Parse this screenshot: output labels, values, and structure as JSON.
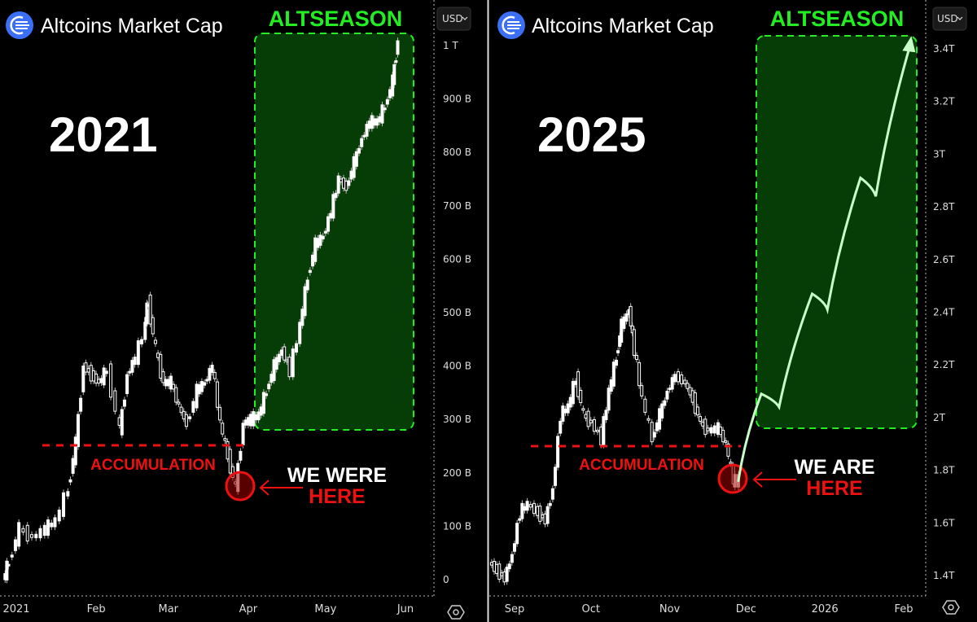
{
  "colors": {
    "background": "#000000",
    "candle": "#ffffff",
    "altseason": "#22ee22",
    "altseason_fill": "#063d06",
    "accumulation": "#ee1111",
    "projection": "#c8ffc8",
    "logo": "#3b6ff5"
  },
  "chart_data": [
    {
      "type": "candlestick",
      "title": "Altcoins Market Cap",
      "year_label": "2021",
      "currency": "USD",
      "currency_icon": "chevron-down-icon",
      "settings_icon": "gear-hexagon-icon",
      "y_ticks": [
        "0",
        "100 B",
        "200 B",
        "300 B",
        "400 B",
        "500 B",
        "600 B",
        "700 B",
        "800 B",
        "900 B",
        "1 T"
      ],
      "y_tick_values": [
        0,
        100,
        200,
        300,
        400,
        500,
        600,
        700,
        800,
        900,
        1000
      ],
      "y_unit": "B USD",
      "x_ticks": [
        "2021",
        "Feb",
        "Mar",
        "Apr",
        "May",
        "Jun"
      ],
      "x_tick_dates": [
        "2021-01-01",
        "2021-02-01",
        "2021-03-01",
        "2021-04-01",
        "2021-05-01",
        "2021-06-01"
      ],
      "series": {
        "dates": [
          "2020-12-27",
          "2020-12-29",
          "2021-01-02",
          "2021-01-07",
          "2021-01-12",
          "2021-01-16",
          "2021-01-21",
          "2021-01-24",
          "2021-01-27",
          "2021-01-30",
          "2021-02-02",
          "2021-02-05",
          "2021-02-10",
          "2021-02-13",
          "2021-02-16",
          "2021-02-20",
          "2021-02-21",
          "2021-02-24",
          "2021-02-27",
          "2021-03-02",
          "2021-03-05",
          "2021-03-08",
          "2021-03-12",
          "2021-03-15",
          "2021-03-18",
          "2021-03-21",
          "2021-03-24",
          "2021-03-27",
          "2021-03-30",
          "2021-04-02",
          "2021-04-05",
          "2021-04-08",
          "2021-04-11",
          "2021-04-14",
          "2021-04-17",
          "2021-04-21",
          "2021-04-24",
          "2021-04-27",
          "2021-04-30",
          "2021-05-03",
          "2021-05-06",
          "2021-05-09",
          "2021-05-12",
          "2021-05-15",
          "2021-05-18",
          "2021-05-21",
          "2021-05-24",
          "2021-05-27",
          "2021-05-29"
        ],
        "close": [
          0,
          34,
          95,
          79,
          95,
          110,
          171,
          255,
          400,
          384,
          369,
          392,
          277,
          384,
          415,
          476,
          521,
          430,
          369,
          369,
          323,
          293,
          354,
          369,
          400,
          293,
          232,
          171,
          293,
          300,
          308,
          354,
          400,
          430,
          392,
          476,
          567,
          628,
          643,
          689,
          750,
          735,
          780,
          826,
          857,
          857,
          887,
          933,
          1009
        ]
      },
      "annotations": {
        "zone_label": "ALTSEASON",
        "zone_range": [
          280,
          1030
        ],
        "zone_dates": [
          "2021-04-02",
          "2021-06-01"
        ],
        "support_label": "ACCUMULATION",
        "support_level": 251,
        "marker_line1": "WE WERE",
        "marker_line2": "HERE",
        "marker_icon": "arrow-left-icon"
      }
    },
    {
      "type": "candlestick",
      "title": "Altcoins Market Cap",
      "year_label": "2025",
      "currency": "USD",
      "currency_icon": "chevron-down-icon",
      "settings_icon": "gear-hexagon-icon",
      "y_ticks": [
        "1.4T",
        "1.6T",
        "1.8T",
        "2T",
        "2.2T",
        "2.4T",
        "2.6T",
        "2.8T",
        "3T",
        "3.2T",
        "3.4T"
      ],
      "y_tick_values": [
        1.4,
        1.6,
        1.8,
        2.0,
        2.2,
        2.4,
        2.6,
        2.8,
        3.0,
        3.2,
        3.4
      ],
      "y_unit": "T USD",
      "x_ticks": [
        "Sep",
        "Oct",
        "Nov",
        "Dec",
        "2026",
        "Feb"
      ],
      "x_tick_dates": [
        "2025-09-01",
        "2025-10-01",
        "2025-11-01",
        "2025-12-01",
        "2026-01-01",
        "2026-02-01"
      ],
      "series": {
        "dates": [
          "2025-08-22",
          "2025-08-25",
          "2025-08-28",
          "2025-08-31",
          "2025-09-03",
          "2025-09-06",
          "2025-09-10",
          "2025-09-13",
          "2025-09-16",
          "2025-09-19",
          "2025-09-22",
          "2025-09-25",
          "2025-09-28",
          "2025-10-01",
          "2025-10-05",
          "2025-10-08",
          "2025-10-11",
          "2025-10-13",
          "2025-10-16",
          "2025-10-18",
          "2025-10-21",
          "2025-10-25",
          "2025-10-28",
          "2025-10-31",
          "2025-11-03",
          "2025-11-07",
          "2025-11-10",
          "2025-11-13",
          "2025-11-16",
          "2025-11-20",
          "2025-11-23",
          "2025-11-26",
          "2025-11-28"
        ],
        "close": [
          1.45,
          1.42,
          1.39,
          1.48,
          1.64,
          1.67,
          1.64,
          1.61,
          1.73,
          2.01,
          2.04,
          2.15,
          2.01,
          1.98,
          1.92,
          2.1,
          2.23,
          2.35,
          2.41,
          2.26,
          2.07,
          1.92,
          2.01,
          2.1,
          2.16,
          2.13,
          2.07,
          1.98,
          1.95,
          1.96,
          1.9,
          1.76,
          1.76
        ]
      },
      "projection": {
        "dates": [
          "2025-11-28",
          "2025-12-07",
          "2025-12-14",
          "2025-12-27",
          "2026-01-02",
          "2026-01-15",
          "2026-01-21",
          "2026-02-04"
        ],
        "values": [
          1.76,
          2.09,
          2.04,
          2.47,
          2.41,
          2.91,
          2.84,
          3.43
        ]
      },
      "annotations": {
        "zone_label": "ALTSEASON",
        "zone_range": [
          1.96,
          3.45
        ],
        "zone_dates": [
          "2025-12-05",
          "2026-02-06"
        ],
        "support_label": "ACCUMULATION",
        "support_level": 1.89,
        "marker_line1": "WE ARE",
        "marker_line2": "HERE",
        "marker_icon": "arrow-left-icon"
      }
    }
  ]
}
